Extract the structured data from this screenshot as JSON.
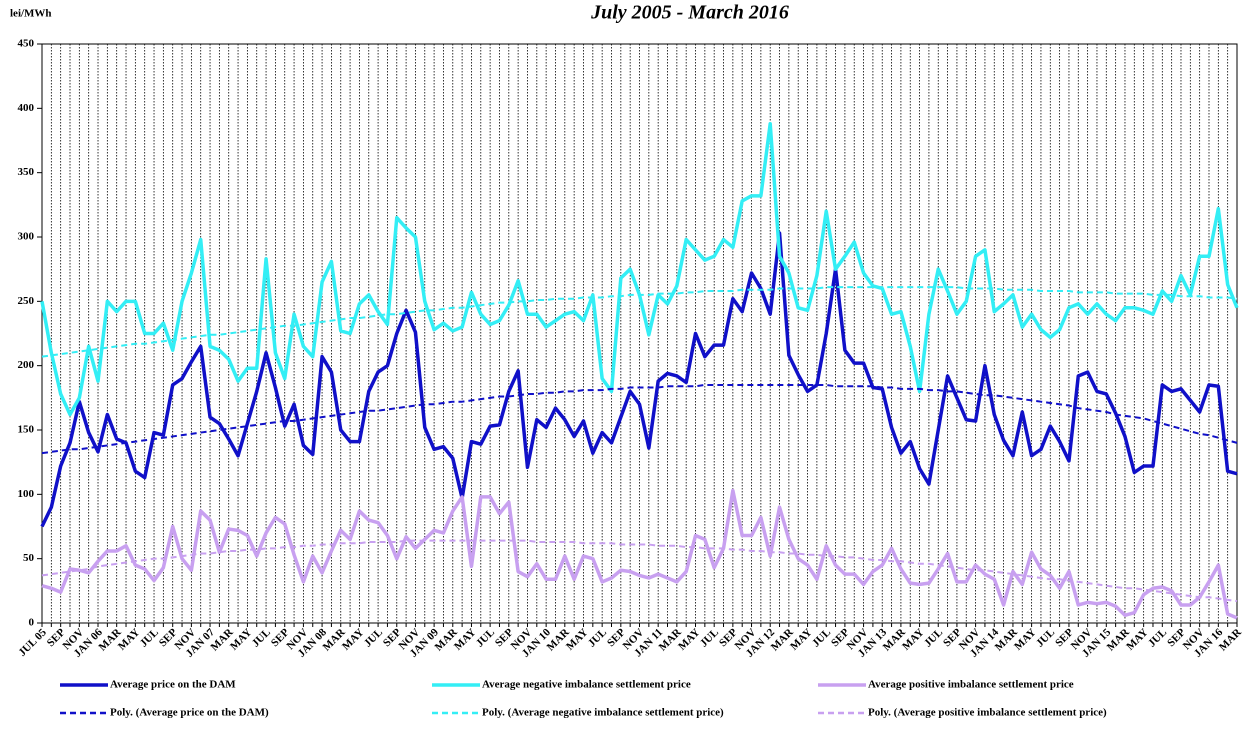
{
  "chart_data": {
    "type": "line",
    "title": "July 2005 - March 2016",
    "y_label": "lei/MWh",
    "ylim": [
      0,
      450
    ],
    "yticks": [
      0,
      50,
      100,
      150,
      200,
      250,
      300,
      350,
      400,
      450
    ],
    "categories": [
      "JUL 05",
      null,
      "SEP",
      null,
      "NOV",
      null,
      "JAN 06",
      null,
      "MAR",
      null,
      "MAY",
      null,
      "JUL",
      null,
      "SEP",
      null,
      "NOV",
      null,
      "JAN 07",
      null,
      "MAR",
      null,
      "MAY",
      null,
      "JUL",
      null,
      "SEP",
      null,
      "NOV",
      null,
      "JAN 08",
      null,
      "MAR",
      null,
      "MAY",
      null,
      "JUL",
      null,
      "SEP",
      null,
      "NOV",
      null,
      "JAN 09",
      null,
      "MAR",
      null,
      "MAY",
      null,
      "JUL",
      null,
      "SEP",
      null,
      "NOV",
      null,
      "JAN 10",
      null,
      "MAR",
      null,
      "MAY",
      null,
      "JUL",
      null,
      "SEP",
      null,
      "NOV",
      null,
      "JAN 11",
      null,
      "MAR",
      null,
      "MAY",
      null,
      "JUL",
      null,
      "SEP",
      null,
      "NOV",
      null,
      "JAN 12",
      null,
      "MAR",
      null,
      "MAY",
      null,
      "JUL",
      null,
      "SEP",
      null,
      "NOV",
      null,
      "JAN 13",
      null,
      "MAR",
      null,
      "MAY",
      null,
      "JUL",
      null,
      "SEP",
      null,
      "NOV",
      null,
      "JAN 14",
      null,
      "MAR",
      null,
      "MAY",
      null,
      "JUL",
      null,
      "SEP",
      null,
      "NOV",
      null,
      "JAN 15",
      null,
      "MAR",
      null,
      "MAY",
      null,
      "JUL",
      null,
      "SEP",
      null,
      "NOV",
      null,
      "JAN 16",
      null,
      "MAR"
    ],
    "series": [
      {
        "name": "Average price on the DAM",
        "color": "#1010c8",
        "style": "solid",
        "values": [
          75,
          90,
          122,
          140,
          172,
          148,
          133,
          162,
          143,
          140,
          118,
          113,
          148,
          146,
          185,
          190,
          203,
          215,
          160,
          155,
          143,
          130,
          155,
          180,
          210,
          183,
          153,
          170,
          138,
          131,
          207,
          195,
          150,
          141,
          141,
          180,
          195,
          200,
          225,
          243,
          226,
          152,
          135,
          137,
          128,
          97,
          141,
          139,
          153,
          154,
          180,
          196,
          121,
          158,
          152,
          167,
          158,
          145,
          157,
          132,
          148,
          140,
          160,
          180,
          170,
          136,
          188,
          194,
          192,
          187,
          225,
          207,
          216,
          216,
          252,
          242,
          272,
          260,
          240,
          303,
          208,
          193,
          180,
          185,
          225,
          275,
          212,
          202,
          202,
          183,
          182,
          152,
          132,
          141,
          120,
          108,
          150,
          192,
          175,
          158,
          157,
          200,
          162,
          142,
          130,
          164,
          130,
          135,
          153,
          141,
          126,
          192,
          195,
          180,
          178,
          163,
          145,
          117,
          122,
          122,
          185,
          180,
          182,
          173,
          164,
          185,
          184,
          118,
          116
        ]
      },
      {
        "name": "Average negative imbalance settlement price",
        "color": "#33eef5",
        "style": "solid",
        "values": [
          250,
          210,
          178,
          162,
          175,
          215,
          188,
          250,
          242,
          250,
          250,
          225,
          225,
          233,
          212,
          250,
          272,
          298,
          215,
          212,
          205,
          188,
          198,
          198,
          283,
          210,
          190,
          240,
          215,
          207,
          265,
          281,
          227,
          225,
          248,
          255,
          242,
          232,
          315,
          307,
          300,
          250,
          228,
          233,
          227,
          230,
          257,
          240,
          232,
          235,
          247,
          266,
          240,
          240,
          230,
          235,
          240,
          242,
          235,
          255,
          190,
          180,
          268,
          275,
          255,
          224,
          255,
          248,
          262,
          298,
          290,
          282,
          285,
          298,
          292,
          328,
          332,
          332,
          388,
          285,
          272,
          245,
          243,
          270,
          320,
          275,
          285,
          296,
          272,
          262,
          260,
          240,
          242,
          215,
          180,
          240,
          275,
          258,
          240,
          250,
          285,
          290,
          242,
          248,
          255,
          230,
          240,
          228,
          222,
          228,
          245,
          248,
          240,
          248,
          240,
          235,
          245,
          245,
          243,
          240,
          258,
          250,
          270,
          255,
          285,
          285,
          322,
          263,
          245
        ]
      },
      {
        "name": "Average positive imbalance settlement price",
        "color": "#c8a0f0",
        "style": "solid",
        "values": [
          29,
          27,
          24,
          42,
          41,
          39,
          48,
          56,
          56,
          60,
          45,
          42,
          33,
          43,
          75,
          50,
          41,
          87,
          80,
          55,
          73,
          72,
          68,
          52,
          70,
          82,
          77,
          53,
          32,
          52,
          39,
          56,
          72,
          65,
          87,
          80,
          78,
          68,
          50,
          67,
          58,
          65,
          72,
          70,
          87,
          98,
          44,
          98,
          98,
          85,
          94,
          40,
          36,
          46,
          34,
          34,
          52,
          34,
          52,
          50,
          32,
          35,
          41,
          40,
          37,
          35,
          38,
          35,
          32,
          40,
          68,
          65,
          43,
          58,
          103,
          68,
          68,
          82,
          52,
          90,
          65,
          50,
          45,
          34,
          60,
          45,
          38,
          38,
          30,
          40,
          45,
          58,
          42,
          31,
          30,
          31,
          42,
          54,
          32,
          32,
          45,
          38,
          34,
          14,
          40,
          30,
          55,
          42,
          37,
          27,
          40,
          14,
          16,
          15,
          16,
          13,
          6,
          8,
          22,
          27,
          28,
          25,
          14,
          14,
          20,
          32,
          45,
          7,
          4
        ]
      },
      {
        "name": "Poly. (Average price on the DAM)",
        "color": "#1010c8",
        "style": "dashed",
        "values": [
          132,
          133,
          134,
          135,
          135,
          136,
          137,
          138,
          139,
          140,
          141,
          142,
          143,
          144,
          145,
          146,
          147,
          148,
          149,
          150,
          151,
          152,
          153,
          154,
          155,
          156,
          157,
          157,
          158,
          159,
          160,
          161,
          162,
          163,
          164,
          165,
          165,
          166,
          167,
          168,
          169,
          170,
          170,
          171,
          172,
          172,
          173,
          174,
          175,
          176,
          176,
          177,
          178,
          178,
          179,
          179,
          180,
          180,
          181,
          181,
          181,
          182,
          182,
          183,
          183,
          183,
          183,
          184,
          184,
          184,
          184,
          185,
          185,
          185,
          185,
          185,
          185,
          185,
          185,
          185,
          185,
          185,
          185,
          185,
          185,
          184,
          184,
          184,
          184,
          184,
          183,
          183,
          182,
          182,
          182,
          181,
          181,
          180,
          180,
          179,
          178,
          177,
          177,
          176,
          175,
          174,
          173,
          172,
          171,
          170,
          169,
          167,
          166,
          165,
          164,
          162,
          161,
          160,
          159,
          157,
          155,
          153,
          151,
          149,
          147,
          146,
          144,
          142,
          140
        ]
      },
      {
        "name": "Poly. (Average negative imbalance settlement price)",
        "color": "#33eef5",
        "style": "dashed",
        "values": [
          207,
          208,
          209,
          210,
          211,
          212,
          213,
          214,
          215,
          216,
          217,
          217,
          218,
          219,
          220,
          221,
          222,
          223,
          224,
          224,
          225,
          226,
          227,
          228,
          229,
          230,
          231,
          231,
          232,
          233,
          234,
          235,
          236,
          237,
          237,
          238,
          239,
          240,
          240,
          241,
          242,
          243,
          243,
          244,
          245,
          245,
          246,
          247,
          248,
          249,
          249,
          250,
          250,
          251,
          251,
          252,
          252,
          252,
          253,
          253,
          253,
          254,
          254,
          255,
          255,
          255,
          256,
          256,
          256,
          257,
          257,
          258,
          258,
          258,
          258,
          259,
          259,
          259,
          259,
          260,
          260,
          260,
          260,
          260,
          261,
          261,
          261,
          261,
          261,
          261,
          261,
          261,
          261,
          261,
          261,
          261,
          261,
          261,
          261,
          260,
          260,
          260,
          260,
          259,
          259,
          259,
          259,
          258,
          258,
          258,
          258,
          257,
          257,
          257,
          257,
          256,
          256,
          256,
          256,
          255,
          255,
          255,
          254,
          254,
          254,
          253,
          253,
          253,
          252
        ]
      },
      {
        "name": "Poly. (Average positive imbalance settlement price)",
        "color": "#c8a0f0",
        "style": "dashed",
        "values": [
          37,
          38,
          39,
          40,
          41,
          42,
          44,
          45,
          46,
          47,
          48,
          49,
          50,
          50,
          51,
          52,
          53,
          54,
          54,
          55,
          56,
          56,
          57,
          57,
          58,
          58,
          59,
          59,
          60,
          60,
          61,
          61,
          62,
          62,
          62,
          63,
          63,
          63,
          63,
          64,
          64,
          64,
          64,
          64,
          64,
          64,
          64,
          64,
          64,
          64,
          64,
          64,
          64,
          63,
          63,
          63,
          63,
          63,
          62,
          62,
          62,
          62,
          61,
          61,
          61,
          61,
          60,
          60,
          60,
          59,
          59,
          58,
          58,
          58,
          57,
          57,
          56,
          56,
          55,
          55,
          54,
          54,
          53,
          53,
          52,
          52,
          51,
          51,
          50,
          49,
          49,
          48,
          48,
          47,
          46,
          46,
          45,
          44,
          43,
          42,
          41,
          41,
          40,
          39,
          38,
          37,
          36,
          35,
          34,
          34,
          33,
          32,
          31,
          30,
          29,
          28,
          27,
          27,
          26,
          25,
          24,
          23,
          22,
          21,
          20,
          20,
          19,
          18,
          17
        ]
      }
    ]
  }
}
